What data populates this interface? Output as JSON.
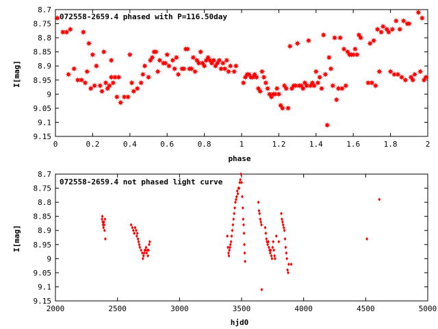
{
  "chart_data": [
    {
      "type": "scatter",
      "title": "072558-2659.4 phased with P=116.50day",
      "xlabel": "phase",
      "ylabel": "I[mag]",
      "xlim": [
        0,
        2
      ],
      "ylim": [
        8.7,
        9.15
      ],
      "y_inverted": true,
      "marker": "filled-star",
      "marker_color": "#ff0000",
      "grid": false,
      "xticks": [
        "0",
        "0.2",
        "0.4",
        "0.6",
        "0.8",
        "1",
        "1.2",
        "1.4",
        "1.6",
        "1.8",
        "2"
      ],
      "yticks": [
        "8.7",
        "8.75",
        "8.8",
        "8.85",
        "8.9",
        "8.95",
        "9",
        "9.05",
        "9.1",
        "9.15"
      ],
      "points": [
        [
          0.01,
          8.73
        ],
        [
          0.04,
          8.78
        ],
        [
          0.06,
          8.78
        ],
        [
          0.08,
          8.77
        ],
        [
          0.07,
          8.93
        ],
        [
          0.1,
          8.91
        ],
        [
          0.12,
          8.95
        ],
        [
          0.14,
          8.95
        ],
        [
          0.15,
          8.78
        ],
        [
          0.16,
          8.96
        ],
        [
          0.17,
          8.92
        ],
        [
          0.18,
          8.82
        ],
        [
          0.19,
          8.98
        ],
        [
          0.2,
          8.86
        ],
        [
          0.21,
          8.97
        ],
        [
          0.22,
          8.9
        ],
        [
          0.24,
          8.97
        ],
        [
          0.25,
          8.99
        ],
        [
          0.26,
          8.85
        ],
        [
          0.27,
          8.96
        ],
        [
          0.28,
          8.98
        ],
        [
          0.29,
          8.97
        ],
        [
          0.3,
          8.88
        ],
        [
          0.3,
          8.94
        ],
        [
          0.31,
          8.96
        ],
        [
          0.32,
          8.94
        ],
        [
          0.33,
          9.01
        ],
        [
          0.34,
          8.94
        ],
        [
          0.35,
          9.03
        ],
        [
          0.37,
          9.01
        ],
        [
          0.39,
          9.01
        ],
        [
          0.4,
          8.86
        ],
        [
          0.41,
          8.96
        ],
        [
          0.42,
          8.99
        ],
        [
          0.44,
          8.98
        ],
        [
          0.46,
          8.96
        ],
        [
          0.47,
          8.93
        ],
        [
          0.48,
          8.9
        ],
        [
          0.5,
          8.94
        ],
        [
          0.51,
          8.88
        ],
        [
          0.52,
          8.87
        ],
        [
          0.53,
          8.85
        ],
        [
          0.54,
          8.85
        ],
        [
          0.55,
          8.92
        ],
        [
          0.56,
          8.88
        ],
        [
          0.58,
          8.89
        ],
        [
          0.59,
          8.89
        ],
        [
          0.6,
          8.86
        ],
        [
          0.61,
          8.9
        ],
        [
          0.63,
          8.88
        ],
        [
          0.64,
          8.91
        ],
        [
          0.65,
          8.87
        ],
        [
          0.66,
          8.93
        ],
        [
          0.68,
          8.91
        ],
        [
          0.69,
          8.91
        ],
        [
          0.7,
          8.84
        ],
        [
          0.71,
          8.84
        ],
        [
          0.72,
          8.91
        ],
        [
          0.73,
          8.91
        ],
        [
          0.74,
          8.87
        ],
        [
          0.75,
          8.92
        ],
        [
          0.76,
          8.88
        ],
        [
          0.77,
          8.89
        ],
        [
          0.78,
          8.85
        ],
        [
          0.79,
          8.89
        ],
        [
          0.8,
          8.9
        ],
        [
          0.81,
          8.88
        ],
        [
          0.82,
          8.87
        ],
        [
          0.83,
          8.88
        ],
        [
          0.84,
          8.89
        ],
        [
          0.85,
          8.88
        ],
        [
          0.86,
          8.9
        ],
        [
          0.87,
          8.89
        ],
        [
          0.88,
          8.88
        ],
        [
          0.89,
          8.91
        ],
        [
          0.9,
          8.89
        ],
        [
          0.91,
          8.91
        ],
        [
          0.92,
          8.88
        ],
        [
          0.93,
          8.92
        ],
        [
          0.94,
          8.9
        ],
        [
          0.96,
          8.92
        ],
        [
          0.97,
          8.9
        ],
        [
          1.01,
          8.96
        ],
        [
          1.02,
          8.94
        ],
        [
          1.03,
          8.93
        ],
        [
          1.04,
          8.93
        ],
        [
          1.05,
          8.94
        ],
        [
          1.06,
          8.94
        ],
        [
          1.07,
          8.93
        ],
        [
          1.08,
          8.94
        ],
        [
          1.09,
          8.98
        ],
        [
          1.1,
          8.99
        ],
        [
          1.11,
          8.92
        ],
        [
          1.12,
          8.94
        ],
        [
          1.13,
          8.96
        ],
        [
          1.14,
          8.98
        ],
        [
          1.15,
          9.0
        ],
        [
          1.16,
          9.01
        ],
        [
          1.17,
          9.0
        ],
        [
          1.18,
          9.0
        ],
        [
          1.19,
          8.98
        ],
        [
          1.2,
          9.0
        ],
        [
          1.21,
          9.04
        ],
        [
          1.22,
          9.05
        ],
        [
          1.23,
          8.97
        ],
        [
          1.24,
          8.98
        ],
        [
          1.25,
          9.05
        ],
        [
          1.26,
          8.83
        ],
        [
          1.27,
          8.98
        ],
        [
          1.28,
          8.97
        ],
        [
          1.29,
          8.97
        ],
        [
          1.3,
          8.82
        ],
        [
          1.31,
          8.97
        ],
        [
          1.32,
          8.97
        ],
        [
          1.33,
          8.98
        ],
        [
          1.34,
          8.96
        ],
        [
          1.35,
          8.97
        ],
        [
          1.36,
          8.81
        ],
        [
          1.37,
          8.97
        ],
        [
          1.38,
          8.96
        ],
        [
          1.39,
          8.97
        ],
        [
          1.4,
          8.92
        ],
        [
          1.41,
          8.96
        ],
        [
          1.42,
          8.94
        ],
        [
          1.43,
          8.98
        ],
        [
          1.44,
          8.79
        ],
        [
          1.45,
          8.93
        ],
        [
          1.46,
          9.11
        ],
        [
          1.47,
          8.87
        ],
        [
          1.48,
          8.91
        ],
        [
          1.49,
          8.97
        ],
        [
          1.5,
          8.8
        ],
        [
          1.51,
          9.02
        ],
        [
          1.52,
          8.98
        ],
        [
          1.53,
          8.8
        ],
        [
          1.54,
          8.98
        ],
        [
          1.55,
          8.84
        ],
        [
          1.56,
          8.97
        ],
        [
          1.57,
          8.85
        ],
        [
          1.58,
          8.86
        ],
        [
          1.59,
          8.86
        ],
        [
          1.6,
          8.86
        ],
        [
          1.61,
          8.84
        ],
        [
          1.62,
          8.86
        ],
        [
          1.63,
          8.79
        ],
        [
          1.64,
          8.8
        ],
        [
          1.68,
          8.96
        ],
        [
          1.69,
          8.82
        ],
        [
          1.7,
          8.96
        ],
        [
          1.71,
          8.81
        ],
        [
          1.72,
          8.97
        ],
        [
          1.73,
          8.77
        ],
        [
          1.74,
          8.92
        ],
        [
          1.75,
          8.78
        ],
        [
          1.76,
          8.76
        ],
        [
          1.78,
          8.77
        ],
        [
          1.79,
          8.78
        ],
        [
          1.8,
          8.92
        ],
        [
          1.81,
          8.77
        ],
        [
          1.82,
          8.93
        ],
        [
          1.83,
          8.74
        ],
        [
          1.84,
          8.93
        ],
        [
          1.85,
          8.77
        ],
        [
          1.86,
          8.94
        ],
        [
          1.87,
          8.74
        ],
        [
          1.88,
          8.95
        ],
        [
          1.89,
          8.75
        ],
        [
          1.9,
          8.75
        ],
        [
          1.91,
          8.94
        ],
        [
          1.92,
          8.95
        ],
        [
          1.93,
          8.93
        ],
        [
          1.95,
          8.71
        ],
        [
          1.96,
          8.92
        ],
        [
          1.97,
          8.73
        ],
        [
          1.98,
          8.95
        ],
        [
          1.99,
          8.94
        ]
      ]
    },
    {
      "type": "scatter",
      "title": "072558-2659.4 not phased light curve",
      "xlabel": "hjd0",
      "ylabel": "I[mag]",
      "xlim": [
        2000,
        5000
      ],
      "ylim": [
        8.7,
        9.15
      ],
      "y_inverted": true,
      "marker": "small-diamond",
      "marker_color": "#ff0000",
      "grid": false,
      "xticks": [
        "2000",
        "2500",
        "3000",
        "3500",
        "4000",
        "4500",
        "5000"
      ],
      "yticks": [
        "8.7",
        "8.75",
        "8.8",
        "8.85",
        "8.9",
        "8.95",
        "9",
        "9.05",
        "9.1",
        "9.15"
      ],
      "points": [
        [
          2375,
          8.86
        ],
        [
          2378,
          8.85
        ],
        [
          2381,
          8.87
        ],
        [
          2384,
          8.88
        ],
        [
          2387,
          8.89
        ],
        [
          2390,
          8.87
        ],
        [
          2393,
          8.88
        ],
        [
          2396,
          8.9
        ],
        [
          2399,
          8.86
        ],
        [
          2402,
          8.93
        ],
        [
          2610,
          8.88
        ],
        [
          2620,
          8.89
        ],
        [
          2628,
          8.9
        ],
        [
          2635,
          8.91
        ],
        [
          2642,
          8.89
        ],
        [
          2650,
          8.9
        ],
        [
          2655,
          8.92
        ],
        [
          2660,
          8.91
        ],
        [
          2665,
          8.93
        ],
        [
          2670,
          8.94
        ],
        [
          2675,
          8.95
        ],
        [
          2680,
          8.96
        ],
        [
          2690,
          8.97
        ],
        [
          2700,
          8.98
        ],
        [
          2705,
          9.0
        ],
        [
          2710,
          8.99
        ],
        [
          2715,
          8.98
        ],
        [
          2720,
          8.97
        ],
        [
          2725,
          8.97
        ],
        [
          2730,
          8.96
        ],
        [
          2735,
          8.98
        ],
        [
          2740,
          8.97
        ],
        [
          2745,
          8.99
        ],
        [
          2750,
          8.97
        ],
        [
          2755,
          8.95
        ],
        [
          2760,
          8.94
        ],
        [
          3385,
          8.92
        ],
        [
          3390,
          8.96
        ],
        [
          3395,
          8.98
        ],
        [
          3398,
          8.99
        ],
        [
          3402,
          8.97
        ],
        [
          3406,
          8.96
        ],
        [
          3410,
          8.95
        ],
        [
          3415,
          8.94
        ],
        [
          3420,
          8.92
        ],
        [
          3425,
          8.9
        ],
        [
          3430,
          8.88
        ],
        [
          3435,
          8.86
        ],
        [
          3440,
          8.84
        ],
        [
          3445,
          8.82
        ],
        [
          3450,
          8.8
        ],
        [
          3455,
          8.79
        ],
        [
          3460,
          8.78
        ],
        [
          3465,
          8.76
        ],
        [
          3470,
          8.77
        ],
        [
          3475,
          8.75
        ],
        [
          3480,
          8.75
        ],
        [
          3485,
          8.73
        ],
        [
          3490,
          8.72
        ],
        [
          3495,
          8.7
        ],
        [
          3500,
          8.73
        ],
        [
          3505,
          8.78
        ],
        [
          3510,
          8.82
        ],
        [
          3513,
          8.86
        ],
        [
          3516,
          8.88
        ],
        [
          3519,
          8.91
        ],
        [
          3522,
          8.95
        ],
        [
          3525,
          8.98
        ],
        [
          3528,
          9.01
        ],
        [
          3635,
          8.8
        ],
        [
          3640,
          8.83
        ],
        [
          3645,
          8.84
        ],
        [
          3650,
          8.86
        ],
        [
          3655,
          8.87
        ],
        [
          3660,
          8.88
        ],
        [
          3662,
          9.11
        ],
        [
          3690,
          8.89
        ],
        [
          3695,
          8.91
        ],
        [
          3700,
          8.93
        ],
        [
          3705,
          8.94
        ],
        [
          3710,
          8.95
        ],
        [
          3715,
          8.94
        ],
        [
          3720,
          8.96
        ],
        [
          3725,
          8.97
        ],
        [
          3730,
          8.98
        ],
        [
          3735,
          8.97
        ],
        [
          3740,
          8.99
        ],
        [
          3745,
          9.0
        ],
        [
          3750,
          8.96
        ],
        [
          3755,
          8.94
        ],
        [
          3760,
          8.97
        ],
        [
          3765,
          8.99
        ],
        [
          3770,
          9.0
        ],
        [
          3780,
          8.92
        ],
        [
          3800,
          8.94
        ],
        [
          3820,
          8.84
        ],
        [
          3825,
          8.86
        ],
        [
          3830,
          8.87
        ],
        [
          3835,
          8.88
        ],
        [
          3840,
          8.89
        ],
        [
          3845,
          8.9
        ],
        [
          3850,
          8.93
        ],
        [
          3855,
          8.96
        ],
        [
          3860,
          8.98
        ],
        [
          3865,
          9.0
        ],
        [
          3870,
          9.04
        ],
        [
          3875,
          9.05
        ],
        [
          3880,
          9.02
        ],
        [
          3900,
          9.02
        ],
        [
          4510,
          8.93
        ],
        [
          4610,
          8.79
        ]
      ]
    }
  ]
}
